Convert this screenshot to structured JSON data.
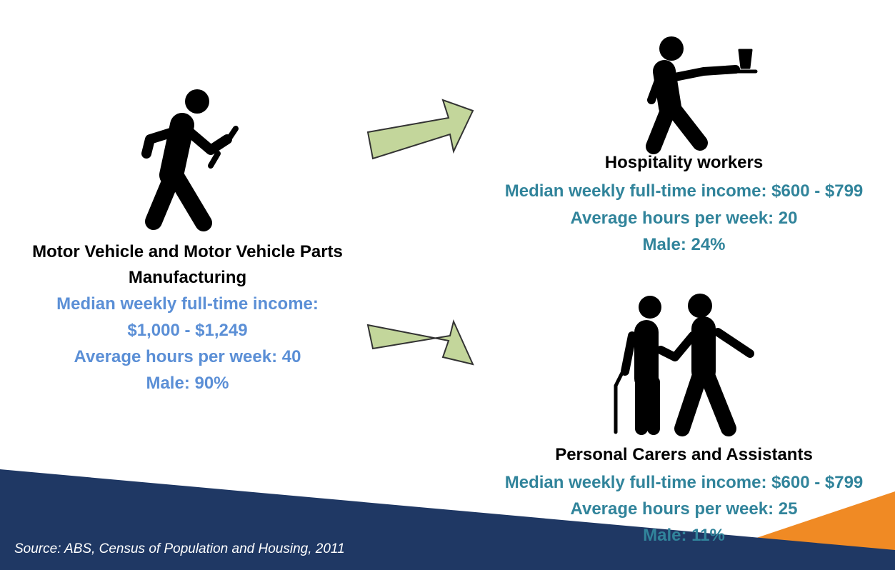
{
  "source_industry": {
    "title": "Motor Vehicle and Motor Vehicle Parts Manufacturing",
    "lines": [
      "Median weekly full-time income:",
      "$1,000 - $1,249",
      "Average hours per week: 40",
      "Male: 90%"
    ]
  },
  "targets": [
    {
      "title": "Hospitality workers",
      "lines": [
        "Median weekly full-time income: $600 - $799",
        "Average hours per week: 20",
        "Male: 24%"
      ]
    },
    {
      "title": "Personal Carers and Assistants",
      "lines": [
        "Median weekly full-time income: $600 - $799",
        "Average hours per week: 25",
        "Male: 11%"
      ]
    }
  ],
  "footer": {
    "source": "Source: ABS, Census of Population and Housing, 2011"
  }
}
